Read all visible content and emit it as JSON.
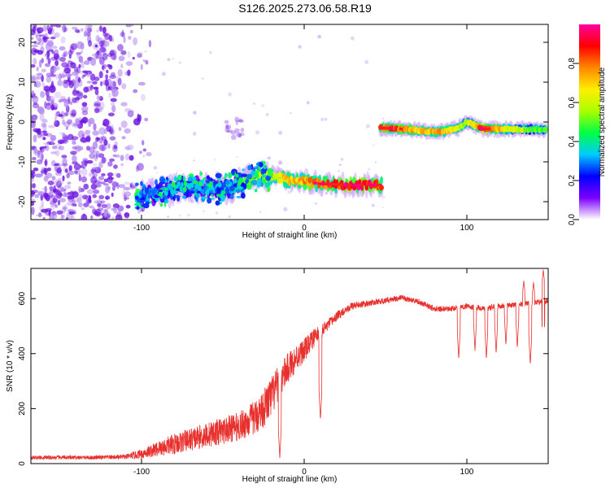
{
  "title": "S126.2025.273.06.58.R19",
  "chart_data": [
    {
      "type": "heatmap",
      "xlabel": "Height of straight line (km)",
      "ylabel": "Frequency (Hz)",
      "xlim": [
        -168,
        150
      ],
      "ylim": [
        -24.5,
        24.5
      ],
      "xticks": [
        -100,
        0,
        100
      ],
      "xtick_labels": [
        "-100",
        "0",
        "100"
      ],
      "yticks": [
        -20,
        -10,
        0,
        10,
        20
      ],
      "ytick_labels": [
        "-20",
        "-10",
        "0",
        "10",
        "20"
      ],
      "colorbar": {
        "label": "Normalized spectral amplitude",
        "range": [
          0.0,
          1.0
        ],
        "ticks": [
          0.0,
          0.2,
          0.4,
          0.6,
          0.8
        ],
        "tick_labels": [
          "0.0",
          "0.2",
          "0.4",
          "0.6",
          "0.8"
        ],
        "colormap": [
          "#ffffff",
          "#7b00ff",
          "#0000ff",
          "#00ccff",
          "#00ff44",
          "#aaff00",
          "#ffee00",
          "#ff8800",
          "#ff0000",
          "#ff00a0"
        ]
      },
      "noise_region": {
        "x": [
          -168,
          -100
        ],
        "y": [
          -24.5,
          24.5
        ],
        "amplitude": 0.15
      },
      "ridge_segments": [
        {
          "name": "lower-band",
          "x": [
            -103,
            -90,
            -80,
            -70,
            -60,
            -50,
            -40,
            -30,
            -20,
            -10,
            0,
            10,
            20,
            30,
            40,
            48
          ],
          "y": [
            -19,
            -18,
            -17,
            -16,
            -16.5,
            -17,
            -15.5,
            -14,
            -13.5,
            -14.5,
            -15,
            -15.5,
            -15.7,
            -15.8,
            -15.8,
            -15.8
          ],
          "amplitude": [
            0.3,
            0.3,
            0.35,
            0.35,
            0.3,
            0.3,
            0.4,
            0.5,
            0.6,
            0.7,
            0.75,
            0.8,
            0.85,
            0.95,
            0.9,
            0.8
          ]
        },
        {
          "name": "upper-band",
          "x": [
            47,
            55,
            65,
            75,
            85,
            95,
            100,
            110,
            120,
            130,
            140,
            149
          ],
          "y": [
            -1.5,
            -1.6,
            -1.9,
            -2.3,
            -2.5,
            -1.5,
            0.0,
            -1.7,
            -1.8,
            -1.8,
            -1.9,
            -1.9
          ],
          "amplitude": [
            0.8,
            0.85,
            0.75,
            0.7,
            0.75,
            0.6,
            0.55,
            0.9,
            0.7,
            0.6,
            0.5,
            0.5
          ]
        }
      ]
    },
    {
      "type": "line",
      "xlabel": "Height of straight line (km)",
      "ylabel": "SNR (10 * v/v)",
      "xlim": [
        -168,
        150
      ],
      "ylim": [
        0,
        710
      ],
      "xticks": [
        -100,
        0,
        100
      ],
      "xtick_labels": [
        "-100",
        "0",
        "100"
      ],
      "yticks": [
        0,
        200,
        400,
        600
      ],
      "ytick_labels": [
        "0",
        "200",
        "400",
        "600"
      ],
      "series": [
        {
          "color": "#e8302d",
          "x": [
            -168,
            -150,
            -130,
            -110,
            -100,
            -90,
            -80,
            -70,
            -60,
            -50,
            -40,
            -30,
            -25,
            -20,
            -15,
            -10,
            -5,
            0,
            5,
            10,
            15,
            20,
            25,
            30,
            40,
            50,
            60,
            70,
            80,
            90,
            100,
            110,
            120,
            130,
            140,
            150
          ],
          "y": [
            20,
            20,
            20,
            22,
            30,
            45,
            60,
            75,
            90,
            105,
            120,
            150,
            180,
            220,
            280,
            330,
            370,
            400,
            440,
            470,
            500,
            530,
            555,
            570,
            580,
            590,
            600,
            585,
            560,
            560,
            570,
            560,
            570,
            575,
            580,
            590
          ],
          "noise": [
            10,
            10,
            10,
            12,
            25,
            40,
            55,
            60,
            65,
            70,
            75,
            90,
            100,
            110,
            90,
            80,
            70,
            60,
            50,
            40,
            30,
            25,
            20,
            20,
            15,
            15,
            15,
            15,
            15,
            15,
            15,
            15,
            15,
            15,
            15,
            15
          ],
          "dips": [
            {
              "x": 10,
              "y": 160
            },
            {
              "x": -15,
              "y": 20
            },
            {
              "x": 95,
              "y": 380
            },
            {
              "x": 105,
              "y": 410
            },
            {
              "x": 112,
              "y": 380
            },
            {
              "x": 118,
              "y": 400
            },
            {
              "x": 124,
              "y": 430
            },
            {
              "x": 131,
              "y": 420
            },
            {
              "x": 139,
              "y": 360
            },
            {
              "x": 147,
              "y": 410
            }
          ],
          "peaks": [
            {
              "x": 135,
              "y": 665
            },
            {
              "x": 141,
              "y": 660
            },
            {
              "x": 147,
              "y": 705
            }
          ]
        }
      ]
    }
  ]
}
